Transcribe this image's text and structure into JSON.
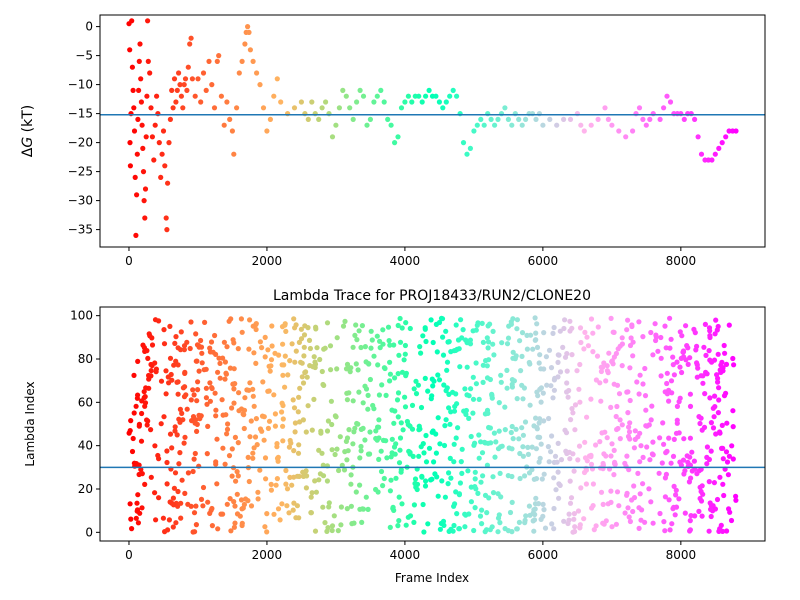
{
  "chart_data": [
    {
      "type": "scatter",
      "title": "",
      "xlabel": "",
      "ylabel_prefix": "Δ",
      "ylabel_var": "G",
      "ylabel_unit": " (kT)",
      "xlim": [
        -420,
        9220
      ],
      "ylim": [
        -38,
        2
      ],
      "xticks": [
        0,
        2000,
        4000,
        6000,
        8000
      ],
      "xtick_labels": [
        "0",
        "2000",
        "4000",
        "6000",
        "8000"
      ],
      "yticks": [
        0,
        -5,
        -10,
        -15,
        -20,
        -25,
        -30,
        -35
      ],
      "ytick_labels": [
        "0",
        "−5",
        "−10",
        "−15",
        "−20",
        "−25",
        "−30",
        "−35"
      ],
      "hline": -15.2,
      "hline_color": "#1f77b4",
      "colormap": "rainbow",
      "x_range": [
        0,
        8800
      ],
      "points": [
        [
          0,
          0.5
        ],
        [
          10,
          -4
        ],
        [
          15,
          -20
        ],
        [
          20,
          -24
        ],
        [
          30,
          -15
        ],
        [
          40,
          1.0
        ],
        [
          50,
          -7
        ],
        [
          60,
          -11
        ],
        [
          70,
          -14
        ],
        [
          80,
          -18
        ],
        [
          90,
          -26
        ],
        [
          100,
          -36
        ],
        [
          110,
          -29
        ],
        [
          120,
          -22
        ],
        [
          130,
          -16
        ],
        [
          140,
          -11
        ],
        [
          150,
          -6
        ],
        [
          160,
          -3
        ],
        [
          170,
          -9
        ],
        [
          180,
          -13
        ],
        [
          190,
          -17
        ],
        [
          200,
          -21
        ],
        [
          210,
          -25
        ],
        [
          220,
          -30
        ],
        [
          230,
          -33
        ],
        [
          240,
          -28
        ],
        [
          250,
          -19
        ],
        [
          260,
          -12
        ],
        [
          270,
          1.0
        ],
        [
          280,
          -6
        ],
        [
          300,
          -8
        ],
        [
          320,
          -14
        ],
        [
          340,
          -19
        ],
        [
          360,
          -23
        ],
        [
          380,
          -17
        ],
        [
          400,
          -12
        ],
        [
          420,
          -15
        ],
        [
          440,
          -20
        ],
        [
          460,
          -26
        ],
        [
          480,
          -22
        ],
        [
          500,
          -18
        ],
        [
          520,
          -24
        ],
        [
          540,
          -33
        ],
        [
          550,
          -35
        ],
        [
          560,
          -27
        ],
        [
          580,
          -20
        ],
        [
          600,
          -16
        ],
        [
          620,
          -11
        ],
        [
          640,
          -14
        ],
        [
          660,
          -9
        ],
        [
          680,
          -13
        ],
        [
          700,
          -11
        ],
        [
          720,
          -8
        ],
        [
          740,
          -10
        ],
        [
          760,
          -12
        ],
        [
          780,
          -14
        ],
        [
          800,
          -10
        ],
        [
          820,
          -9
        ],
        [
          840,
          -11
        ],
        [
          860,
          -7
        ],
        [
          880,
          -3
        ],
        [
          900,
          -2
        ],
        [
          920,
          -9
        ],
        [
          960,
          -12
        ],
        [
          1000,
          -9
        ],
        [
          1040,
          -13
        ],
        [
          1080,
          -8
        ],
        [
          1120,
          -11
        ],
        [
          1160,
          -6
        ],
        [
          1200,
          -10
        ],
        [
          1240,
          -14
        ],
        [
          1280,
          -6
        ],
        [
          1300,
          -5
        ],
        [
          1340,
          -12
        ],
        [
          1380,
          -17
        ],
        [
          1420,
          -13
        ],
        [
          1460,
          -16
        ],
        [
          1500,
          -18
        ],
        [
          1520,
          -22
        ],
        [
          1560,
          -14
        ],
        [
          1600,
          -8
        ],
        [
          1640,
          -6
        ],
        [
          1680,
          -3
        ],
        [
          1700,
          -1
        ],
        [
          1720,
          0
        ],
        [
          1740,
          -1
        ],
        [
          1760,
          -4
        ],
        [
          1800,
          -6
        ],
        [
          1850,
          -8
        ],
        [
          1900,
          -10
        ],
        [
          1950,
          -14
        ],
        [
          2000,
          -18
        ],
        [
          2050,
          -16
        ],
        [
          2100,
          -12
        ],
        [
          2150,
          -9
        ],
        [
          2200,
          -13
        ],
        [
          2300,
          -15
        ],
        [
          2400,
          -14
        ],
        [
          2500,
          -13
        ],
        [
          2550,
          -15
        ],
        [
          2600,
          -16
        ],
        [
          2650,
          -13
        ],
        [
          2700,
          -15
        ],
        [
          2750,
          -16
        ],
        [
          2800,
          -14
        ],
        [
          2850,
          -13
        ],
        [
          2900,
          -15
        ],
        [
          2950,
          -19
        ],
        [
          3000,
          -17
        ],
        [
          3050,
          -14
        ],
        [
          3100,
          -11
        ],
        [
          3150,
          -12
        ],
        [
          3200,
          -14
        ],
        [
          3250,
          -16
        ],
        [
          3300,
          -13
        ],
        [
          3350,
          -11
        ],
        [
          3400,
          -12
        ],
        [
          3450,
          -17
        ],
        [
          3500,
          -16
        ],
        [
          3550,
          -13
        ],
        [
          3600,
          -12
        ],
        [
          3650,
          -11
        ],
        [
          3700,
          -13
        ],
        [
          3750,
          -16
        ],
        [
          3800,
          -17
        ],
        [
          3850,
          -20
        ],
        [
          3900,
          -19
        ],
        [
          3950,
          -14
        ],
        [
          4000,
          -13
        ],
        [
          4050,
          -12
        ],
        [
          4100,
          -13
        ],
        [
          4150,
          -12
        ],
        [
          4200,
          -12
        ],
        [
          4250,
          -13
        ],
        [
          4300,
          -12
        ],
        [
          4350,
          -11
        ],
        [
          4400,
          -12
        ],
        [
          4450,
          -12
        ],
        [
          4500,
          -13
        ],
        [
          4550,
          -14
        ],
        [
          4600,
          -13
        ],
        [
          4650,
          -12
        ],
        [
          4700,
          -11
        ],
        [
          4750,
          -12
        ],
        [
          4800,
          -15
        ],
        [
          4850,
          -20
        ],
        [
          4900,
          -22
        ],
        [
          4950,
          -21
        ],
        [
          5000,
          -18
        ],
        [
          5050,
          -17
        ],
        [
          5100,
          -16
        ],
        [
          5150,
          -17
        ],
        [
          5200,
          -15
        ],
        [
          5250,
          -16
        ],
        [
          5300,
          -17
        ],
        [
          5350,
          -16
        ],
        [
          5400,
          -15
        ],
        [
          5450,
          -14
        ],
        [
          5500,
          -16
        ],
        [
          5550,
          -17
        ],
        [
          5600,
          -15
        ],
        [
          5650,
          -16
        ],
        [
          5700,
          -17
        ],
        [
          5750,
          -16
        ],
        [
          5800,
          -15
        ],
        [
          5850,
          -15
        ],
        [
          5900,
          -16
        ],
        [
          5950,
          -15
        ],
        [
          6000,
          -17
        ],
        [
          6100,
          -16
        ],
        [
          6200,
          -17
        ],
        [
          6300,
          -16
        ],
        [
          6400,
          -16
        ],
        [
          6500,
          -15
        ],
        [
          6550,
          -17
        ],
        [
          6600,
          -18
        ],
        [
          6700,
          -17
        ],
        [
          6800,
          -16
        ],
        [
          6900,
          -14
        ],
        [
          6950,
          -16
        ],
        [
          7000,
          -17
        ],
        [
          7100,
          -18
        ],
        [
          7200,
          -19
        ],
        [
          7300,
          -18
        ],
        [
          7350,
          -15
        ],
        [
          7400,
          -14
        ],
        [
          7450,
          -16
        ],
        [
          7500,
          -17
        ],
        [
          7550,
          -16
        ],
        [
          7600,
          -15
        ],
        [
          7700,
          -16
        ],
        [
          7750,
          -14
        ],
        [
          7800,
          -12
        ],
        [
          7850,
          -13
        ],
        [
          7900,
          -15
        ],
        [
          7950,
          -15
        ],
        [
          8000,
          -15
        ],
        [
          8050,
          -16
        ],
        [
          8100,
          -15
        ],
        [
          8150,
          -15
        ],
        [
          8200,
          -16
        ],
        [
          8250,
          -19
        ],
        [
          8300,
          -22
        ],
        [
          8350,
          -23
        ],
        [
          8400,
          -23
        ],
        [
          8450,
          -23
        ],
        [
          8500,
          -22
        ],
        [
          8550,
          -21
        ],
        [
          8600,
          -20
        ],
        [
          8650,
          -19
        ],
        [
          8700,
          -18
        ],
        [
          8750,
          -18
        ],
        [
          8800,
          -18
        ]
      ]
    },
    {
      "type": "scatter",
      "title": "Lambda Trace for PROJ18433/RUN2/CLONE20",
      "xlabel": "Frame Index",
      "ylabel": "Lambda Index",
      "xlim": [
        -420,
        9220
      ],
      "ylim": [
        -4,
        104
      ],
      "xticks": [
        0,
        2000,
        4000,
        6000,
        8000
      ],
      "xtick_labels": [
        "0",
        "2000",
        "4000",
        "6000",
        "8000"
      ],
      "yticks": [
        0,
        20,
        40,
        60,
        80,
        100
      ],
      "ytick_labels": [
        "0",
        "20",
        "40",
        "60",
        "80",
        "100"
      ],
      "hline": 30,
      "hline_color": "#1f77b4",
      "colormap": "rainbow",
      "x_range": [
        0,
        8800
      ],
      "y_range": [
        0,
        99
      ]
    }
  ]
}
